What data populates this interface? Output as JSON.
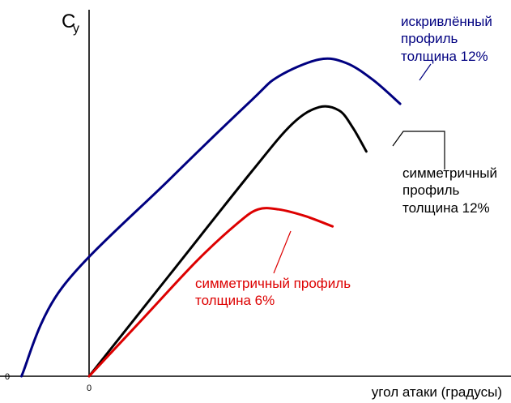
{
  "chart_data": {
    "type": "line",
    "ylabel_main": "C",
    "ylabel_sub": "y",
    "xlabel": "угол атаки (градусы)",
    "x_origin_label": "0",
    "y_origin_label": "0",
    "grid": false,
    "series": [
      {
        "key": "cambered",
        "color": "#000080",
        "label_lines": [
          "искривлённый",
          "профиль",
          "толщина 12%"
        ],
        "points": [
          [
            -5,
            0
          ],
          [
            -2,
            0.26
          ],
          [
            6,
            0.58
          ],
          [
            12,
            0.81
          ],
          [
            14,
            0.88
          ],
          [
            17,
            0.93
          ],
          [
            19,
            0.92
          ],
          [
            21,
            0.87
          ],
          [
            23,
            0.8
          ]
        ]
      },
      {
        "key": "symmetric12",
        "color": "#000000",
        "label_lines": [
          "симметричный",
          "профиль",
          "толщина 12%"
        ],
        "points": [
          [
            0,
            0
          ],
          [
            6,
            0.3
          ],
          [
            12,
            0.6
          ],
          [
            15,
            0.74
          ],
          [
            17,
            0.79
          ],
          [
            18.5,
            0.78
          ],
          [
            19.5,
            0.73
          ],
          [
            20.5,
            0.66
          ]
        ]
      },
      {
        "key": "symmetric6",
        "color": "#dd0000",
        "label_lines": [
          "симметричный профиль",
          "толщина 6%"
        ],
        "points": [
          [
            0,
            0
          ],
          [
            4,
            0.17
          ],
          [
            8,
            0.34
          ],
          [
            11,
            0.45
          ],
          [
            12.5,
            0.49
          ],
          [
            14,
            0.49
          ],
          [
            16,
            0.47
          ],
          [
            18,
            0.44
          ]
        ]
      }
    ]
  }
}
